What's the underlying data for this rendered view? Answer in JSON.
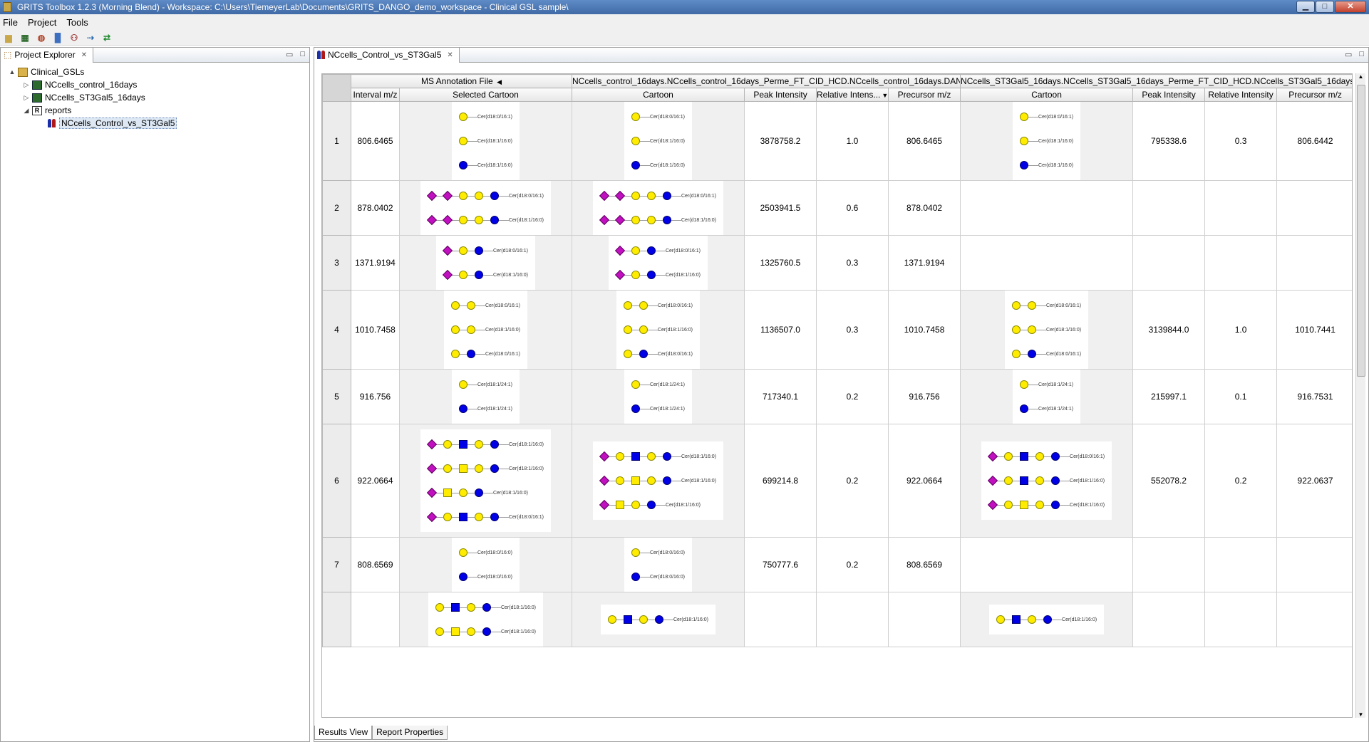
{
  "window": {
    "title": "GRITS Toolbox 1.2.3 (Morning Blend) - Workspace: C:\\Users\\TiemeyerLab\\Documents\\GRITS_DANGO_demo_workspace - Clinical GSL sample\\"
  },
  "menu": [
    "File",
    "Project",
    "Tools"
  ],
  "explorer": {
    "tab": "Project Explorer",
    "tree": [
      {
        "label": "Clinical_GSLs",
        "level": 0,
        "expander": "▲",
        "icon": "folder-icon"
      },
      {
        "label": "NCcells_control_16days",
        "level": 1,
        "expander": "▷",
        "icon": "dataset-icon"
      },
      {
        "label": "NCcells_ST3Gal5_16days",
        "level": 1,
        "expander": "▷",
        "icon": "dataset-icon"
      },
      {
        "label": "reports",
        "level": 1,
        "expander": "◢",
        "icon": "report-icon"
      },
      {
        "label": "NCcells_Control_vs_ST3Gal5",
        "level": 2,
        "expander": "",
        "icon": "comparison-icon",
        "selected": true
      }
    ]
  },
  "editor": {
    "tab": "NCcells_Control_vs_ST3Gal5",
    "groups": [
      {
        "label": "MS Annotation File"
      },
      {
        "label": "NCcells_control_16days.NCcells_control_16days_Perme_FT_CID_HCD.NCcells_control_16days.DAN..."
      },
      {
        "label": "NCcells_ST3Gal5_16days.NCcells_ST3Gal5_16days_Perme_FT_CID_HCD.NCcells_ST3Gal5_16days_Pe..."
      }
    ],
    "columns": [
      "Interval m/z",
      "Selected Cartoon",
      "Cartoon",
      "Peak Intensity",
      "Relative Intens...",
      "Precursor m/z",
      "Cartoon",
      "Peak Intensity",
      "Relative Intensity",
      "Precursor m/z"
    ],
    "rows": [
      {
        "n": "1",
        "mz": "806.6465",
        "c1": "3878758.2",
        "r1": "1.0",
        "p1": "806.6465",
        "c2": "795338.6",
        "r2": "0.3",
        "p2": "806.6442"
      },
      {
        "n": "2",
        "mz": "878.0402",
        "c1": "2503941.5",
        "r1": "0.6",
        "p1": "878.0402",
        "c2": "",
        "r2": "",
        "p2": ""
      },
      {
        "n": "3",
        "mz": "1371.9194",
        "c1": "1325760.5",
        "r1": "0.3",
        "p1": "1371.9194",
        "c2": "",
        "r2": "",
        "p2": ""
      },
      {
        "n": "4",
        "mz": "1010.7458",
        "c1": "1136507.0",
        "r1": "0.3",
        "p1": "1010.7458",
        "c2": "3139844.0",
        "r2": "1.0",
        "p2": "1010.7441"
      },
      {
        "n": "5",
        "mz": "916.756",
        "c1": "717340.1",
        "r1": "0.2",
        "p1": "916.756",
        "c2": "215997.1",
        "r2": "0.1",
        "p2": "916.7531"
      },
      {
        "n": "6",
        "mz": "922.0664",
        "c1": "699214.8",
        "r1": "0.2",
        "p1": "922.0664",
        "c2": "552078.2",
        "r2": "0.2",
        "p2": "922.0637"
      },
      {
        "n": "7",
        "mz": "808.6569",
        "c1": "750777.6",
        "r1": "0.2",
        "p1": "808.6569",
        "c2": "",
        "r2": "",
        "p2": ""
      },
      {
        "n": "",
        "mz": "",
        "c1": "",
        "r1": "",
        "p1": "",
        "c2": "",
        "r2": "",
        "p2": ""
      }
    ],
    "cartoons": {
      "r1": [
        [
          "Cer(d18:0/16:1)"
        ],
        [
          "Cer(d18:1/16:0)"
        ],
        [
          "Cer(d18:1/16:0)"
        ]
      ],
      "r2": [
        "Cer(d18:0/16:1)",
        "Cer(d18:1/16:0)"
      ],
      "r3": [
        "Cer(d18:0/16:1)",
        "Cer(d18:1/16:0)"
      ],
      "r4": [
        "Cer(d18:0/16:1)",
        "Cer(d18:1/16:0)",
        "Cer(d18:0/16:1)"
      ],
      "r5": [
        "Cer(d18:1/24:1)",
        "Cer(d18:1/24:1)"
      ],
      "r6sel": [
        "Cer(d18:1/16:0)",
        "Cer(d18:1/16:0)",
        "Cer(d18:1/16:0)",
        "Cer(d18:0/16:1)"
      ],
      "r6c1": [
        "Cer(d18:1/16:0)",
        "Cer(d18:1/16:0)",
        "Cer(d18:1/16:0)"
      ],
      "r6c2": [
        "Cer(d18:0/16:1)",
        "Cer(d18:1/16:0)",
        "Cer(d18:1/16:0)"
      ],
      "r7": [
        "Cer(d18:0/16:0)",
        "Cer(d18:0/16:0)"
      ],
      "r8sel": [
        "Cer(d18:1/16:0)",
        "Cer(d18:1/16:0)"
      ],
      "r8": [
        "Cer(d18:1/16:0)"
      ]
    },
    "bottom_tabs": [
      "Results View",
      "Report Properties"
    ]
  },
  "colors": {
    "galactose": "#ffec00",
    "glucose": "#0000e6",
    "sialic_acid": "#c010c0",
    "title_bar": "#4a76b3"
  }
}
